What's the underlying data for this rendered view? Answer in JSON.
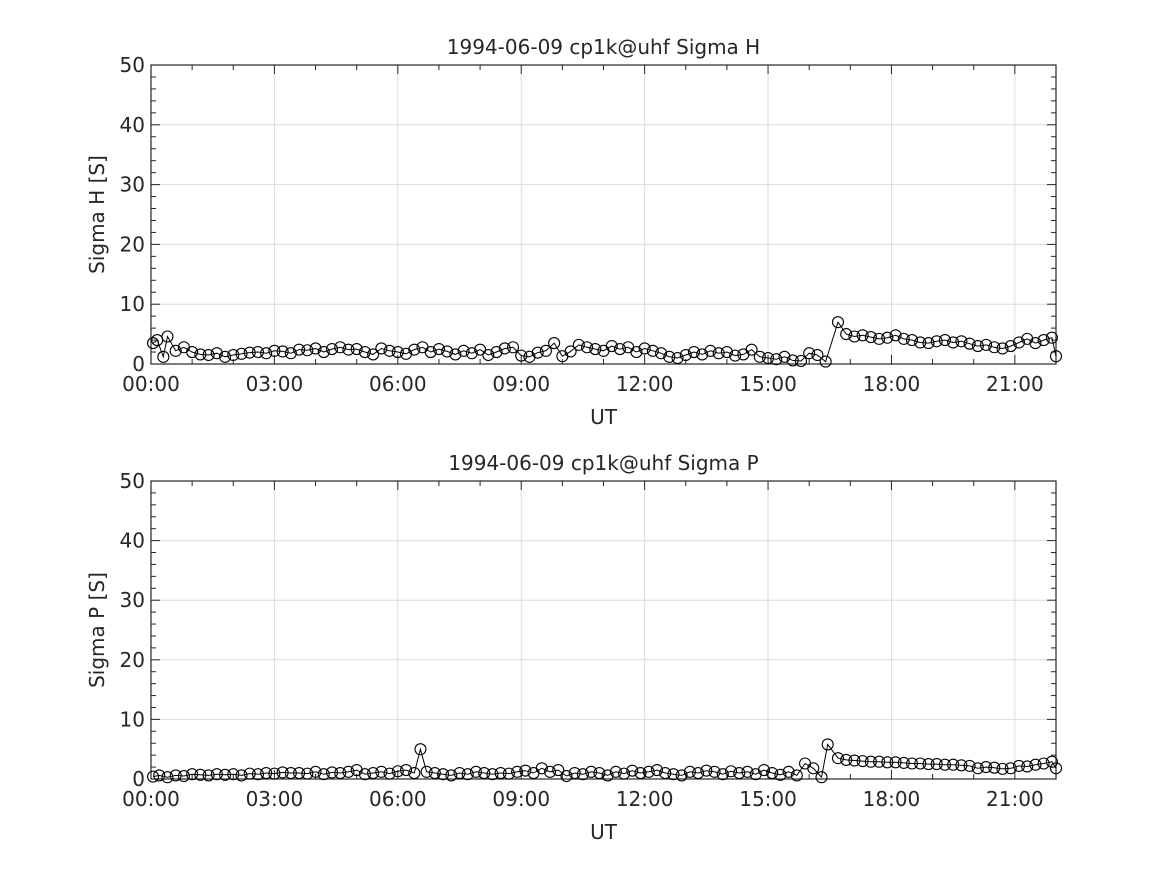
{
  "chart_data": [
    {
      "type": "scatter",
      "title": "1994-06-09  cp1k@uhf Sigma H",
      "xlabel": "UT",
      "ylabel": "Sigma H [S]",
      "xlim_hours": [
        0,
        22
      ],
      "ylim": [
        0,
        50
      ],
      "x_tick_labels": [
        "00:00",
        "03:00",
        "06:00",
        "09:00",
        "12:00",
        "15:00",
        "18:00",
        "21:00"
      ],
      "x_tick_hours": [
        0,
        3,
        6,
        9,
        12,
        15,
        18,
        21
      ],
      "y_ticks": [
        0,
        10,
        20,
        30,
        40,
        50
      ],
      "grid": true,
      "marker": "open-circle",
      "x_unit": "hours UT",
      "x": [
        0.05,
        0.15,
        0.3,
        0.4,
        0.6,
        0.8,
        1.0,
        1.2,
        1.4,
        1.6,
        1.8,
        2.0,
        2.2,
        2.4,
        2.6,
        2.8,
        3.0,
        3.2,
        3.4,
        3.6,
        3.8,
        4.0,
        4.2,
        4.4,
        4.6,
        4.8,
        5.0,
        5.2,
        5.4,
        5.6,
        5.8,
        6.0,
        6.2,
        6.4,
        6.6,
        6.8,
        7.0,
        7.2,
        7.4,
        7.6,
        7.8,
        8.0,
        8.2,
        8.4,
        8.6,
        8.8,
        9.0,
        9.2,
        9.4,
        9.6,
        9.8,
        10.0,
        10.2,
        10.4,
        10.6,
        10.8,
        11.0,
        11.2,
        11.4,
        11.6,
        11.8,
        12.0,
        12.2,
        12.4,
        12.6,
        12.8,
        13.0,
        13.2,
        13.4,
        13.6,
        13.8,
        14.0,
        14.2,
        14.4,
        14.6,
        14.8,
        15.0,
        15.2,
        15.4,
        15.6,
        15.8,
        16.0,
        16.2,
        16.4,
        16.7,
        16.9,
        17.1,
        17.3,
        17.5,
        17.7,
        17.9,
        18.1,
        18.3,
        18.5,
        18.7,
        18.9,
        19.1,
        19.3,
        19.5,
        19.7,
        19.9,
        20.1,
        20.3,
        20.5,
        20.7,
        20.9,
        21.1,
        21.3,
        21.5,
        21.7,
        21.9,
        22.0
      ],
      "y": [
        3.5,
        4.0,
        1.2,
        4.6,
        2.2,
        2.8,
        2.0,
        1.6,
        1.5,
        1.8,
        1.2,
        1.5,
        1.7,
        1.9,
        2.0,
        1.8,
        2.2,
        2.1,
        1.8,
        2.4,
        2.3,
        2.6,
        2.0,
        2.5,
        2.8,
        2.4,
        2.5,
        2.0,
        1.6,
        2.6,
        2.2,
        2.0,
        1.7,
        2.4,
        2.8,
        2.0,
        2.5,
        2.1,
        1.6,
        2.2,
        1.8,
        2.4,
        1.5,
        2.0,
        2.6,
        2.8,
        1.4,
        1.2,
        1.9,
        2.2,
        3.5,
        1.3,
        2.1,
        3.2,
        2.8,
        2.5,
        2.2,
        3.0,
        2.5,
        2.8,
        2.0,
        2.6,
        2.2,
        1.8,
        1.2,
        1.0,
        1.5,
        2.0,
        1.6,
        2.2,
        1.8,
        2.0,
        1.4,
        1.6,
        2.4,
        1.2,
        1.0,
        0.8,
        1.2,
        0.6,
        0.5,
        1.8,
        1.5,
        0.4,
        7.0,
        5.0,
        4.6,
        4.8,
        4.5,
        4.2,
        4.4,
        4.8,
        4.2,
        4.0,
        3.6,
        3.5,
        3.8,
        4.0,
        3.6,
        3.8,
        3.4,
        3.0,
        3.2,
        2.8,
        2.6,
        3.0,
        3.6,
        4.2,
        3.5,
        4.0,
        4.4,
        1.3
      ]
    },
    {
      "type": "scatter",
      "title": "1994-06-09  cp1k@uhf Sigma P",
      "xlabel": "UT",
      "ylabel": "Sigma P [S]",
      "xlim_hours": [
        0,
        22
      ],
      "ylim": [
        0,
        50
      ],
      "x_tick_labels": [
        "00:00",
        "03:00",
        "06:00",
        "09:00",
        "12:00",
        "15:00",
        "18:00",
        "21:00"
      ],
      "x_tick_hours": [
        0,
        3,
        6,
        9,
        12,
        15,
        18,
        21
      ],
      "y_ticks": [
        0,
        10,
        20,
        30,
        40,
        50
      ],
      "grid": true,
      "marker": "open-circle",
      "x_unit": "hours UT",
      "x": [
        0.05,
        0.2,
        0.4,
        0.6,
        0.8,
        1.0,
        1.2,
        1.4,
        1.6,
        1.8,
        2.0,
        2.2,
        2.4,
        2.6,
        2.8,
        3.0,
        3.2,
        3.4,
        3.6,
        3.8,
        4.0,
        4.2,
        4.4,
        4.6,
        4.8,
        5.0,
        5.2,
        5.4,
        5.6,
        5.8,
        6.0,
        6.2,
        6.4,
        6.55,
        6.7,
        6.9,
        7.1,
        7.3,
        7.5,
        7.7,
        7.9,
        8.1,
        8.3,
        8.5,
        8.7,
        8.9,
        9.1,
        9.3,
        9.5,
        9.7,
        9.9,
        10.1,
        10.3,
        10.5,
        10.7,
        10.9,
        11.1,
        11.3,
        11.5,
        11.7,
        11.9,
        12.1,
        12.3,
        12.5,
        12.7,
        12.9,
        13.1,
        13.3,
        13.5,
        13.7,
        13.9,
        14.1,
        14.3,
        14.5,
        14.7,
        14.9,
        15.1,
        15.3,
        15.5,
        15.7,
        15.9,
        16.1,
        16.3,
        16.45,
        16.7,
        16.9,
        17.1,
        17.3,
        17.5,
        17.7,
        17.9,
        18.1,
        18.3,
        18.5,
        18.7,
        18.9,
        19.1,
        19.3,
        19.5,
        19.7,
        19.9,
        20.1,
        20.3,
        20.5,
        20.7,
        20.9,
        21.1,
        21.3,
        21.5,
        21.7,
        21.9,
        22.0
      ],
      "y": [
        0.4,
        0.6,
        0.3,
        0.6,
        0.5,
        0.8,
        0.7,
        0.6,
        0.8,
        0.7,
        0.8,
        0.6,
        0.9,
        0.8,
        1.0,
        0.9,
        1.1,
        1.0,
        1.0,
        0.9,
        1.2,
        0.8,
        1.1,
        1.0,
        1.2,
        1.5,
        0.8,
        1.0,
        1.2,
        0.9,
        1.3,
        1.5,
        1.0,
        5.0,
        1.2,
        1.0,
        0.8,
        0.6,
        1.0,
        0.8,
        1.2,
        1.0,
        0.8,
        1.0,
        0.9,
        1.2,
        1.4,
        1.0,
        1.8,
        1.2,
        1.5,
        0.5,
        1.0,
        0.8,
        1.2,
        1.0,
        0.6,
        1.2,
        0.9,
        1.4,
        1.0,
        1.2,
        1.5,
        1.0,
        0.8,
        0.6,
        1.2,
        1.0,
        1.4,
        1.2,
        0.8,
        1.3,
        1.0,
        1.2,
        0.8,
        1.5,
        1.0,
        0.7,
        1.2,
        0.6,
        2.6,
        1.8,
        0.3,
        5.8,
        3.5,
        3.2,
        3.1,
        3.0,
        2.9,
        2.9,
        2.8,
        2.8,
        2.7,
        2.6,
        2.6,
        2.5,
        2.5,
        2.4,
        2.4,
        2.3,
        2.2,
        1.8,
        2.0,
        1.9,
        1.7,
        1.8,
        2.2,
        2.1,
        2.4,
        2.6,
        2.9,
        1.8
      ]
    }
  ]
}
